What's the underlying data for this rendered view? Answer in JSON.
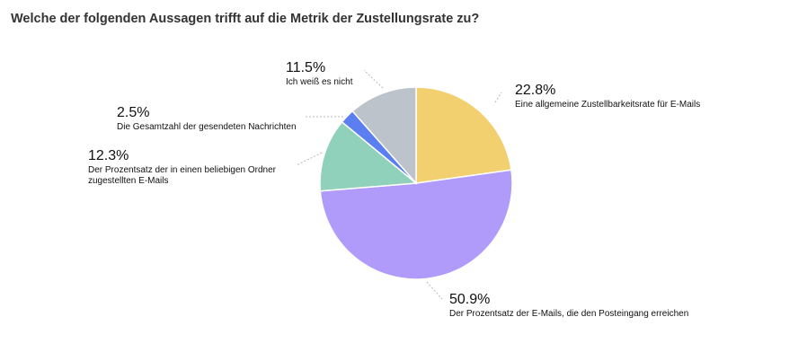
{
  "chart_data": {
    "type": "pie",
    "title": "Welche der folgenden Aussagen trifft auf die Metrik der Zustellungsrate zu?",
    "slices": [
      {
        "percent_label": "22.8%",
        "value": 22.8,
        "label_lines": [
          "Eine allgemeine Zustellbarkeitsrate für E-Mails"
        ],
        "color": "#f2d06f"
      },
      {
        "percent_label": "50.9%",
        "value": 50.9,
        "label_lines": [
          "Der Prozentsatz der E-Mails, die den Posteingang erreichen"
        ],
        "color": "#b09afa"
      },
      {
        "percent_label": "12.3%",
        "value": 12.3,
        "label_lines": [
          "Der Prozentsatz der in einen beliebigen Ordner",
          "zugestellten E-Mails"
        ],
        "color": "#8fd1bb"
      },
      {
        "percent_label": "2.5%",
        "value": 2.5,
        "label_lines": [
          "Die Gesamtzahl der gesendeten Nachrichten"
        ],
        "color": "#5b7ef0"
      },
      {
        "percent_label": "11.5%",
        "value": 11.5,
        "label_lines": [
          "Ich weiß es nicht"
        ],
        "color": "#bcc3cb"
      }
    ]
  }
}
